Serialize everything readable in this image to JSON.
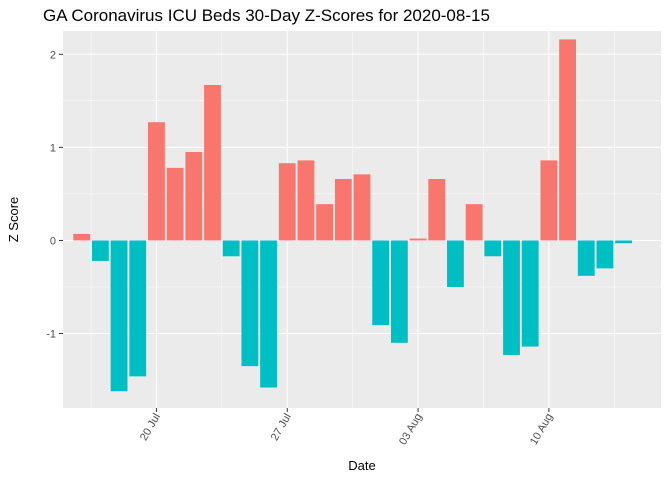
{
  "chart_data": {
    "type": "bar",
    "title": "GA Coronavirus ICU Beds 30-Day Z-Scores for 2020-08-15",
    "xlabel": "Date",
    "ylabel": "Z Score",
    "x_start": "2020-07-16",
    "x_range": [
      "2020-07-15",
      "2020-08-16"
    ],
    "ylim": [
      -1.8,
      2.25
    ],
    "y_ticks": [
      -1,
      0,
      1,
      2
    ],
    "y_tick_labels": [
      "-1",
      "0",
      "1",
      "2"
    ],
    "x_ticks": [
      "2020-07-20",
      "2020-07-27",
      "2020-08-03",
      "2020-08-10"
    ],
    "x_tick_labels": [
      "20 Jul",
      "27 Jul",
      "03 Aug",
      "10 Aug"
    ],
    "grid": true,
    "background": "#ebebeb",
    "colors": {
      "positive": "#f8766d",
      "negative": "#00bfc4"
    },
    "values": [
      0.07,
      -0.22,
      -1.62,
      -1.46,
      1.27,
      0.78,
      0.95,
      1.67,
      -0.17,
      -1.35,
      -1.58,
      0.83,
      0.86,
      0.39,
      0.66,
      0.71,
      -0.91,
      -1.1,
      0.02,
      0.66,
      -0.5,
      0.39,
      -0.17,
      -1.23,
      -1.14,
      0.86,
      2.16,
      -0.38,
      -0.3,
      -0.03
    ]
  }
}
